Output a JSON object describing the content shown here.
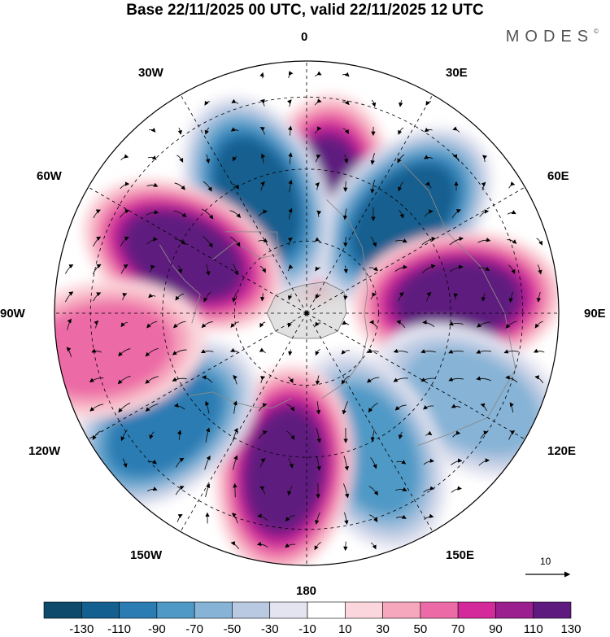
{
  "title": "Base 22/11/2025 00 UTC, valid 22/11/2025 12 UTC",
  "brand": "MODES",
  "brand_mark": "©",
  "longitude_labels": {
    "n0": "0",
    "n30e": "30E",
    "n60e": "60E",
    "n90e": "90E",
    "n120e": "120E",
    "n150e": "150E",
    "n180": "180",
    "n150w": "150W",
    "n120w": "120W",
    "n90w": "90W",
    "n60w": "60W",
    "n30w": "30W"
  },
  "vector_reference": "10",
  "colorbar": {
    "ticks": [
      "-130",
      "-110",
      "-90",
      "-70",
      "-50",
      "-30",
      "-10",
      "10",
      "30",
      "50",
      "70",
      "90",
      "110",
      "130"
    ],
    "colors": [
      "#0d4a6b",
      "#135f8f",
      "#2b7cb3",
      "#4f99c6",
      "#86b3d6",
      "#b9c9e2",
      "#e3e4f0",
      "#ffffff",
      "#fbd6dc",
      "#f6a6bd",
      "#ec6ba6",
      "#d4299a",
      "#9b1f8f",
      "#5e1a7f"
    ]
  },
  "chart_data": {
    "type": "heatmap",
    "projection": "north polar stereographic",
    "title": "Base 22/11/2025 00 UTC, valid 22/11/2025 12 UTC",
    "field_range": [
      -130,
      130
    ],
    "contour_levels": [
      -130,
      -110,
      -90,
      -70,
      -50,
      -30,
      -10,
      10,
      30,
      50,
      70,
      90,
      110,
      130
    ],
    "anomaly_centers": [
      {
        "longitude": 8,
        "latitude": 58,
        "value": 125
      },
      {
        "longitude": 45,
        "latitude": 52,
        "value": -128
      },
      {
        "longitude": -23,
        "latitude": 55,
        "value": -120
      },
      {
        "longitude": -65,
        "latitude": 52,
        "value": 120
      },
      {
        "longitude": 85,
        "latitude": 48,
        "value": 120
      },
      {
        "longitude": 118,
        "latitude": 38,
        "value": -50
      },
      {
        "longitude": 155,
        "latitude": 48,
        "value": -85
      },
      {
        "longitude": -172,
        "latitude": 46,
        "value": 110
      },
      {
        "longitude": -128,
        "latitude": 40,
        "value": -100
      },
      {
        "longitude": -100,
        "latitude": 32,
        "value": 60
      }
    ],
    "vector_reference_magnitude": 10
  }
}
